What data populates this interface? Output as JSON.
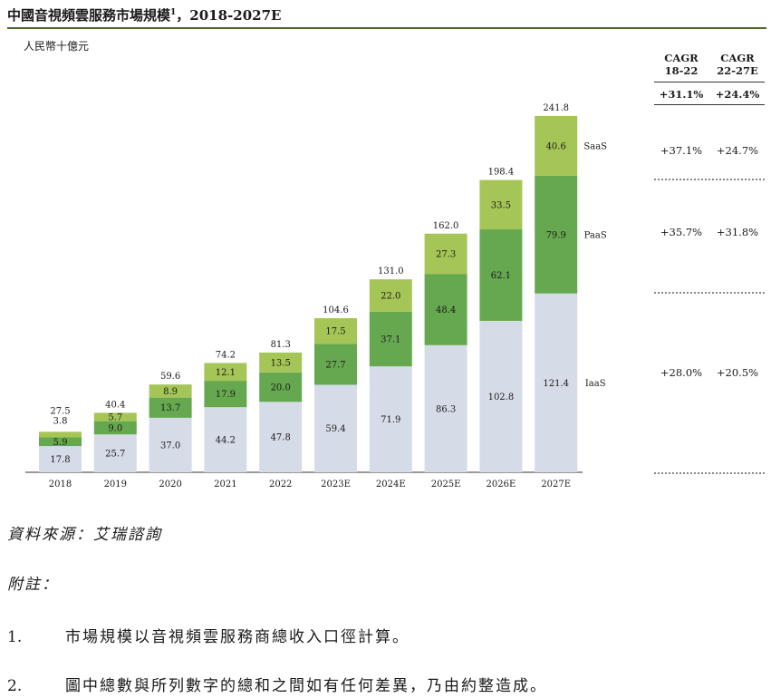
{
  "title": "中國音視頻雲服務市場規模",
  "title_sup": "1",
  "title_suffix": "，2018-2027E",
  "unit": "人民幣十億元",
  "cagr": {
    "header1": [
      "CAGR",
      "18-22"
    ],
    "header2": [
      "CAGR",
      "22-27E"
    ],
    "total": [
      "+31.1%",
      "+24.4%"
    ],
    "saas": [
      "+37.1%",
      "+24.7%"
    ],
    "paas": [
      "+35.7%",
      "+31.8%"
    ],
    "iaas": [
      "+28.0%",
      "+20.5%"
    ]
  },
  "source": "資料來源：艾瑞諮詢",
  "notes_heading": "附註：",
  "notes": [
    {
      "num": "1.",
      "text": "市場規模以音視頻雲服務商總收入口徑計算。"
    },
    {
      "num": "2.",
      "text": "圖中總數與所列數字的總和之間如有任何差異，乃由約整造成。"
    }
  ],
  "chart_data": {
    "type": "bar",
    "stacked": true,
    "categories": [
      "2018",
      "2019",
      "2020",
      "2021",
      "2022",
      "2023E",
      "2024E",
      "2025E",
      "2026E",
      "2027E"
    ],
    "series": [
      {
        "name": "IaaS",
        "color": "#d5dce8",
        "values": [
          17.8,
          25.7,
          37.0,
          44.2,
          47.8,
          59.4,
          71.9,
          86.3,
          102.8,
          121.4
        ]
      },
      {
        "name": "PaaS",
        "color": "#66a84f",
        "values": [
          5.9,
          9.0,
          13.7,
          17.9,
          20.0,
          27.7,
          37.1,
          48.4,
          62.1,
          79.9
        ]
      },
      {
        "name": "SaaS",
        "color": "#a6c557",
        "values": [
          3.8,
          5.7,
          8.9,
          12.1,
          13.5,
          17.5,
          22.0,
          27.3,
          33.5,
          40.6
        ]
      }
    ],
    "totals": [
      27.5,
      40.4,
      59.6,
      74.2,
      81.3,
      104.6,
      131.0,
      162.0,
      198.4,
      241.8
    ],
    "labels": [
      [
        "17.8",
        "5.9",
        "3.8"
      ],
      [
        "25.7",
        "9.0",
        "5.7"
      ],
      [
        "37.0",
        "13.7",
        "8.9"
      ],
      [
        "44.2",
        "17.9",
        "12.1"
      ],
      [
        "47.8",
        "20.0",
        "13.5"
      ],
      [
        "59.4",
        "27.7",
        "17.5"
      ],
      [
        "71.9",
        "37.1",
        "22.0"
      ],
      [
        "86.3",
        "48.4",
        "27.3"
      ],
      [
        "102.8",
        "62.1",
        "33.5"
      ],
      [
        "121.4",
        "79.9",
        "40.6"
      ]
    ],
    "total_labels": [
      "27.5",
      "40.4",
      "59.6",
      "74.2",
      "81.3",
      "104.6",
      "131.0",
      "162.0",
      "198.4",
      "241.8"
    ]
  }
}
